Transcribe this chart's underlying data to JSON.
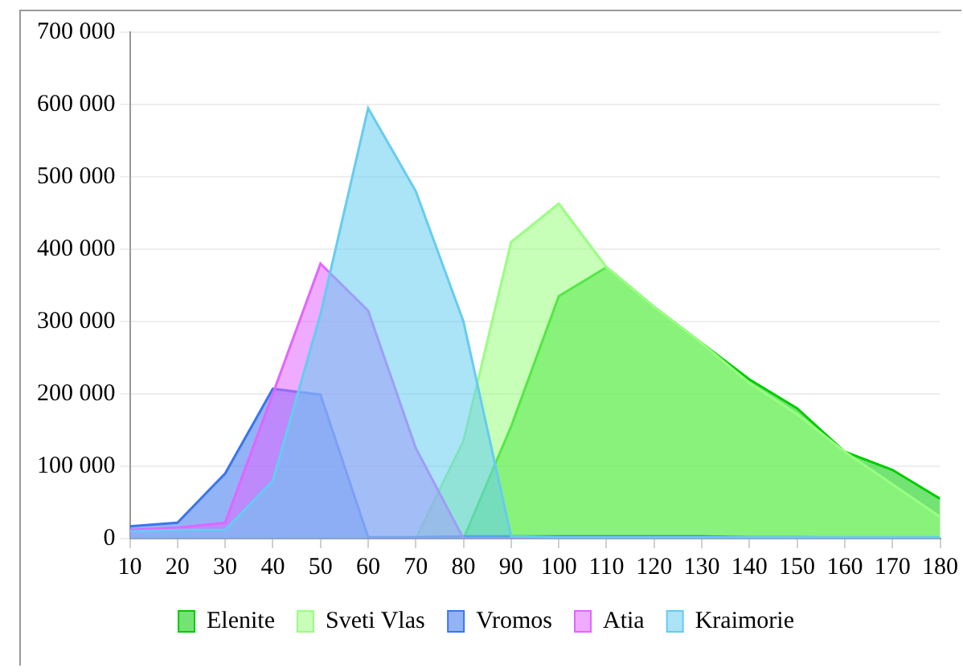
{
  "chart_data": {
    "type": "area",
    "x": [
      10,
      20,
      30,
      40,
      50,
      60,
      70,
      80,
      90,
      100,
      110,
      120,
      130,
      140,
      150,
      160,
      170,
      180
    ],
    "xlim": [
      10,
      180
    ],
    "xticks": [
      10,
      20,
      30,
      40,
      50,
      60,
      70,
      80,
      90,
      100,
      110,
      120,
      130,
      140,
      150,
      160,
      170,
      180
    ],
    "ylim": [
      0,
      700000
    ],
    "yticks": [
      {
        "value": 0,
        "label": "0"
      },
      {
        "value": 100000,
        "label": "100 000"
      },
      {
        "value": 200000,
        "label": "200 000"
      },
      {
        "value": 300000,
        "label": "300 000"
      },
      {
        "value": 400000,
        "label": "400 000"
      },
      {
        "value": 500000,
        "label": "500 000"
      },
      {
        "value": 600000,
        "label": "600 000"
      },
      {
        "value": 700000,
        "label": "700 000"
      }
    ],
    "grid": "y",
    "legend": "bottom",
    "series": [
      {
        "name": "Elenite",
        "color": "#00cc00",
        "values": [
          0,
          0,
          0,
          0,
          0,
          0,
          0,
          0,
          155000,
          335000,
          375000,
          320000,
          270000,
          220000,
          180000,
          120000,
          95000,
          55000
        ]
      },
      {
        "name": "Sveti Vlas",
        "color": "#99ff80",
        "values": [
          0,
          0,
          0,
          0,
          0,
          0,
          0,
          135000,
          410000,
          463000,
          375000,
          320000,
          270000,
          215000,
          172000,
          120000,
          75000,
          30000
        ]
      },
      {
        "name": "Vromos",
        "color": "#3a75f0",
        "values": [
          17000,
          22000,
          90000,
          207000,
          199000,
          2000,
          2000,
          3000,
          3000,
          3000,
          3000,
          3000,
          3000,
          2000,
          2000,
          1000,
          1000,
          0
        ]
      },
      {
        "name": "Atia",
        "color": "#e066ff",
        "values": [
          12000,
          15000,
          22000,
          200000,
          380000,
          315000,
          125000,
          0,
          0,
          0,
          0,
          0,
          0,
          0,
          0,
          0,
          0,
          0
        ]
      },
      {
        "name": "Kraimorie",
        "color": "#66ccf0",
        "values": [
          10000,
          12000,
          12000,
          80000,
          310000,
          595000,
          480000,
          300000,
          3000,
          2000,
          2000,
          2000,
          2000,
          2000,
          2000,
          2000,
          2000,
          2000
        ]
      }
    ]
  }
}
